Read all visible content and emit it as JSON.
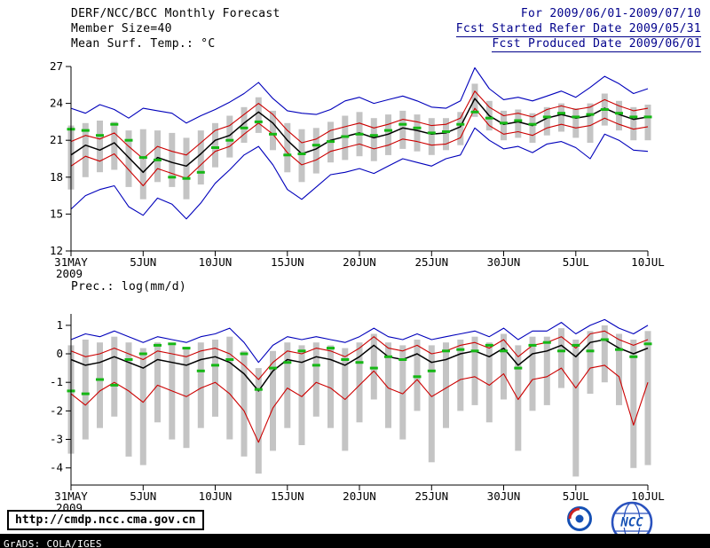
{
  "header": {
    "title": "DERF/NCC/BCC Monthly Forecast",
    "member_size": "Member Size=40",
    "period": "For 2009/06/01-2009/07/10",
    "refer_date": "Fcst Started Refer Date 2009/05/31",
    "produced_date": "Fcst Produced Date 2009/06/01"
  },
  "footer": {
    "url": "http://cmdp.ncc.cma.gov.cn",
    "credit": "GrADS: COLA/IGES",
    "logo_bcc": "BCC",
    "logo_ncc": "NCC"
  },
  "colors": {
    "envelope_line": "#0000bb",
    "bound_line": "#cc0000",
    "mean_line": "#000000",
    "observed_mark": "#15b715",
    "spread_bar": "#c4c4c4",
    "header_text_right": "#00008b",
    "credit_bar_bg": "#000000"
  },
  "chart_data": [
    {
      "type": "line",
      "title": "Mean Surf. Temp.: °C",
      "xlabel": "",
      "ylabel": "",
      "grid": false,
      "legend": "none",
      "ylim": [
        12,
        27
      ],
      "yticks": [
        12,
        15,
        18,
        21,
        24,
        27
      ],
      "x": [
        "31MAY",
        "1JUN",
        "2JUN",
        "3JUN",
        "4JUN",
        "5JUN",
        "6JUN",
        "7JUN",
        "8JUN",
        "9JUN",
        "10JUN",
        "11JUN",
        "12JUN",
        "13JUN",
        "14JUN",
        "15JUN",
        "16JUN",
        "17JUN",
        "18JUN",
        "19JUN",
        "20JUN",
        "21JUN",
        "22JUN",
        "23JUN",
        "24JUN",
        "25JUN",
        "26JUN",
        "27JUN",
        "28JUN",
        "29JUN",
        "30JUN",
        "1JUL",
        "2JUL",
        "3JUL",
        "4JUL",
        "5JUL",
        "6JUL",
        "7JUL",
        "8JUL",
        "9JUL",
        "10JUL"
      ],
      "xticks": [
        0,
        5,
        10,
        15,
        20,
        25,
        30,
        35,
        40
      ],
      "xtick_labels": [
        "31MAY",
        "5JUN",
        "10JUN",
        "15JUN",
        "20JUN",
        "25JUN",
        "30JUN",
        "5JUL",
        "10JUL"
      ],
      "year": "2009",
      "bars": {
        "name": "ensemble-spread-bar",
        "color": "#c4c4c4",
        "top": [
          22.2,
          22.4,
          22.6,
          22.5,
          21.8,
          21.9,
          21.8,
          21.6,
          21.2,
          21.8,
          22.4,
          23.0,
          23.7,
          24.5,
          23.4,
          22.4,
          21.9,
          22.0,
          22.5,
          23.0,
          23.3,
          22.8,
          23.1,
          23.4,
          23.1,
          22.8,
          22.8,
          23.3,
          25.6,
          24.2,
          23.4,
          23.5,
          23.2,
          23.7,
          24.0,
          23.6,
          24.0,
          24.8,
          24.2,
          23.7,
          23.9
        ],
        "bottom": [
          17.0,
          18.0,
          18.4,
          18.6,
          17.2,
          16.2,
          17.6,
          17.2,
          16.2,
          17.4,
          18.8,
          19.6,
          20.8,
          21.6,
          20.2,
          18.4,
          17.6,
          18.3,
          19.2,
          19.4,
          19.7,
          19.3,
          19.8,
          20.3,
          20.1,
          19.8,
          20.2,
          20.6,
          22.9,
          21.8,
          21.0,
          21.2,
          20.8,
          21.4,
          21.7,
          21.2,
          20.8,
          22.2,
          21.8,
          21.0,
          21.0
        ]
      },
      "series": [
        {
          "name": "ensemble-max",
          "color": "#0000bb",
          "width": 1.1,
          "values": [
            23.6,
            23.2,
            23.9,
            23.5,
            22.8,
            23.6,
            23.4,
            23.2,
            22.4,
            23.0,
            23.5,
            24.1,
            24.8,
            25.7,
            24.4,
            23.4,
            23.2,
            23.1,
            23.5,
            24.2,
            24.5,
            24.0,
            24.3,
            24.6,
            24.2,
            23.7,
            23.6,
            24.2,
            26.9,
            25.2,
            24.3,
            24.5,
            24.2,
            24.6,
            25.0,
            24.5,
            25.3,
            26.2,
            25.6,
            24.8,
            25.2
          ]
        },
        {
          "name": "ensemble-min",
          "color": "#0000bb",
          "width": 1.1,
          "values": [
            15.4,
            16.5,
            17.0,
            17.3,
            15.6,
            14.9,
            16.3,
            15.8,
            14.6,
            15.9,
            17.5,
            18.6,
            19.8,
            20.5,
            19.0,
            17.0,
            16.2,
            17.2,
            18.2,
            18.4,
            18.7,
            18.3,
            18.9,
            19.5,
            19.2,
            18.9,
            19.5,
            19.8,
            22.0,
            21.0,
            20.3,
            20.5,
            20.0,
            20.7,
            20.9,
            20.4,
            19.5,
            21.5,
            21.0,
            20.2,
            20.1
          ]
        },
        {
          "name": "upper-bound",
          "color": "#cc0000",
          "width": 1.1,
          "values": [
            20.9,
            21.4,
            21.1,
            21.6,
            20.5,
            19.5,
            20.5,
            20.1,
            19.8,
            20.8,
            21.8,
            22.2,
            23.1,
            24.0,
            23.1,
            21.8,
            20.8,
            21.1,
            21.8,
            22.1,
            22.4,
            22.0,
            22.3,
            22.7,
            22.5,
            22.2,
            22.3,
            22.8,
            25.0,
            23.7,
            23.0,
            23.2,
            22.9,
            23.5,
            23.8,
            23.5,
            23.7,
            24.3,
            23.8,
            23.4,
            23.6
          ]
        },
        {
          "name": "lower-bound",
          "color": "#cc0000",
          "width": 1.1,
          "values": [
            18.9,
            19.7,
            19.3,
            19.9,
            18.6,
            17.3,
            18.7,
            18.3,
            17.9,
            19.0,
            20.1,
            20.5,
            21.5,
            22.4,
            21.5,
            20.0,
            19.0,
            19.4,
            20.1,
            20.4,
            20.7,
            20.3,
            20.6,
            21.1,
            20.9,
            20.6,
            20.7,
            21.2,
            23.6,
            22.2,
            21.5,
            21.7,
            21.4,
            22.0,
            22.3,
            22.0,
            22.2,
            22.8,
            22.3,
            21.9,
            22.1
          ]
        },
        {
          "name": "ensemble-mean",
          "color": "#000000",
          "width": 1.5,
          "values": [
            19.8,
            20.6,
            20.2,
            20.8,
            19.6,
            18.4,
            19.6,
            19.2,
            18.9,
            19.9,
            21.0,
            21.4,
            22.4,
            23.3,
            22.4,
            21.0,
            19.9,
            20.3,
            21.0,
            21.3,
            21.6,
            21.2,
            21.5,
            22.0,
            21.8,
            21.5,
            21.6,
            22.1,
            24.4,
            23.0,
            22.3,
            22.5,
            22.2,
            22.8,
            23.1,
            22.8,
            23.0,
            23.6,
            23.1,
            22.7,
            22.9
          ]
        },
        {
          "name": "observed",
          "color": "#15b715",
          "style": "dashes",
          "values": [
            21.9,
            21.8,
            21.4,
            22.3,
            21.0,
            19.6,
            19.4,
            18.0,
            17.9,
            18.4,
            20.4,
            21.0,
            22.0,
            22.5,
            21.5,
            19.8,
            19.9,
            20.6,
            20.9,
            21.3,
            21.5,
            21.4,
            21.8,
            22.3,
            22.0,
            21.6,
            21.7,
            22.3,
            23.3,
            22.8,
            22.4,
            22.6,
            22.3,
            22.9,
            23.2,
            22.9,
            23.1,
            23.5,
            23.2,
            22.9,
            22.9
          ]
        }
      ]
    },
    {
      "type": "line",
      "title": "Prec.: log(mm/d)",
      "xlabel": "",
      "ylabel": "",
      "grid": false,
      "legend": "none",
      "ylim": [
        -4.6,
        1.4
      ],
      "yticks": [
        -4,
        -3,
        -2,
        -1,
        0,
        1
      ],
      "x": [
        "31MAY",
        "1JUN",
        "2JUN",
        "3JUN",
        "4JUN",
        "5JUN",
        "6JUN",
        "7JUN",
        "8JUN",
        "9JUN",
        "10JUN",
        "11JUN",
        "12JUN",
        "13JUN",
        "14JUN",
        "15JUN",
        "16JUN",
        "17JUN",
        "18JUN",
        "19JUN",
        "20JUN",
        "21JUN",
        "22JUN",
        "23JUN",
        "24JUN",
        "25JUN",
        "26JUN",
        "27JUN",
        "28JUN",
        "29JUN",
        "30JUN",
        "1JUL",
        "2JUL",
        "3JUL",
        "4JUL",
        "5JUL",
        "6JUL",
        "7JUL",
        "8JUL",
        "9JUL",
        "10JUL"
      ],
      "xticks": [
        0,
        5,
        10,
        15,
        20,
        25,
        30,
        35,
        40
      ],
      "xtick_labels": [
        "31MAY",
        "5JUN",
        "10JUN",
        "15JUN",
        "20JUN",
        "25JUN",
        "30JUN",
        "5JUL",
        "10JUL"
      ],
      "year": "2009",
      "bars": {
        "name": "ensemble-spread-bar",
        "color": "#c4c4c4",
        "top": [
          0.3,
          0.5,
          0.4,
          0.6,
          0.4,
          0.2,
          0.4,
          0.3,
          0.2,
          0.4,
          0.5,
          0.6,
          0.1,
          -0.5,
          0.1,
          0.4,
          0.3,
          0.4,
          0.3,
          0.2,
          0.4,
          0.7,
          0.4,
          0.3,
          0.5,
          0.3,
          0.4,
          0.5,
          0.6,
          0.4,
          0.7,
          0.3,
          0.6,
          0.6,
          0.9,
          0.5,
          0.8,
          1.0,
          0.7,
          0.5,
          0.8
        ],
        "bottom": [
          -3.5,
          -3.0,
          -2.6,
          -2.2,
          -3.6,
          -3.9,
          -2.4,
          -3.0,
          -3.3,
          -2.6,
          -2.2,
          -3.0,
          -3.6,
          -4.2,
          -3.4,
          -2.6,
          -3.2,
          -2.2,
          -2.6,
          -3.4,
          -2.4,
          -1.6,
          -2.6,
          -3.0,
          -2.0,
          -3.8,
          -2.6,
          -2.0,
          -1.8,
          -2.4,
          -1.6,
          -3.4,
          -2.0,
          -1.8,
          -1.2,
          -4.3,
          -1.4,
          -1.0,
          -1.8,
          -4.0,
          -3.9
        ]
      },
      "series": [
        {
          "name": "ensemble-max",
          "color": "#0000bb",
          "width": 1.1,
          "values": [
            0.5,
            0.7,
            0.6,
            0.8,
            0.6,
            0.4,
            0.6,
            0.5,
            0.4,
            0.6,
            0.7,
            0.9,
            0.4,
            -0.3,
            0.3,
            0.6,
            0.5,
            0.6,
            0.5,
            0.4,
            0.6,
            0.9,
            0.6,
            0.5,
            0.7,
            0.5,
            0.6,
            0.7,
            0.8,
            0.6,
            0.9,
            0.5,
            0.8,
            0.8,
            1.1,
            0.7,
            1.0,
            1.2,
            0.9,
            0.7,
            1.0
          ]
        },
        {
          "name": "upper-bound",
          "color": "#cc0000",
          "width": 1.1,
          "values": [
            0.1,
            -0.1,
            0.0,
            0.2,
            0.0,
            -0.2,
            0.1,
            0.0,
            -0.1,
            0.1,
            0.2,
            0.0,
            -0.4,
            -0.9,
            -0.3,
            0.1,
            0.0,
            0.2,
            0.1,
            -0.1,
            0.2,
            0.6,
            0.2,
            0.1,
            0.3,
            0.0,
            0.1,
            0.3,
            0.4,
            0.2,
            0.5,
            -0.1,
            0.3,
            0.4,
            0.6,
            0.2,
            0.7,
            0.8,
            0.5,
            0.3,
            0.5
          ]
        },
        {
          "name": "lower-bound",
          "color": "#cc0000",
          "width": 1.1,
          "values": [
            -1.4,
            -1.8,
            -1.3,
            -1.0,
            -1.3,
            -1.7,
            -1.1,
            -1.3,
            -1.5,
            -1.2,
            -1.0,
            -1.4,
            -2.0,
            -3.1,
            -1.9,
            -1.2,
            -1.5,
            -1.0,
            -1.2,
            -1.6,
            -1.1,
            -0.6,
            -1.2,
            -1.4,
            -0.9,
            -1.5,
            -1.2,
            -0.9,
            -0.8,
            -1.1,
            -0.7,
            -1.6,
            -0.9,
            -0.8,
            -0.5,
            -1.2,
            -0.5,
            -0.4,
            -0.8,
            -2.5,
            -1.0
          ]
        },
        {
          "name": "ensemble-mean",
          "color": "#000000",
          "width": 1.5,
          "values": [
            -0.2,
            -0.4,
            -0.3,
            -0.1,
            -0.3,
            -0.5,
            -0.2,
            -0.3,
            -0.4,
            -0.2,
            -0.1,
            -0.3,
            -0.7,
            -1.3,
            -0.6,
            -0.2,
            -0.3,
            -0.1,
            -0.2,
            -0.4,
            -0.1,
            0.3,
            -0.1,
            -0.2,
            0.0,
            -0.3,
            -0.2,
            0.0,
            0.1,
            -0.1,
            0.2,
            -0.4,
            0.0,
            0.1,
            0.3,
            -0.1,
            0.4,
            0.5,
            0.2,
            0.0,
            0.2
          ]
        },
        {
          "name": "observed",
          "color": "#15b715",
          "style": "dashes",
          "values": [
            -1.3,
            -1.4,
            -0.9,
            -1.1,
            -0.2,
            0.0,
            0.3,
            0.35,
            0.2,
            -0.6,
            -0.4,
            -0.2,
            0.0,
            -1.25,
            -0.5,
            -0.3,
            0.1,
            -0.4,
            0.2,
            -0.2,
            -0.3,
            -0.5,
            -0.1,
            -0.2,
            -0.8,
            -0.6,
            0.1,
            0.15,
            0.1,
            0.3,
            0.1,
            -0.5,
            0.3,
            0.4,
            0.1,
            0.3,
            0.1,
            0.5,
            0.15,
            -0.1,
            0.35
          ]
        }
      ]
    }
  ]
}
